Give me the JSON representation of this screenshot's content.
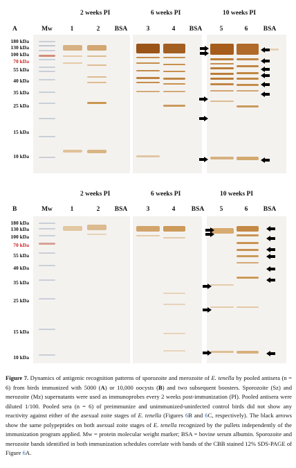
{
  "panels": [
    {
      "letter": "A",
      "pi_headers": [
        "2 weeks PI",
        "6 weeks PI",
        "10 weeks PI"
      ],
      "lane_labels": [
        "Mw",
        "1",
        "2",
        "BSA",
        "3",
        "4",
        "BSA",
        "5",
        "6",
        "BSA"
      ],
      "markers": [
        "180 kDa",
        "130 kDa",
        "100 kDa",
        "70 kDa",
        "55 kDa",
        "40 kDa",
        "35 kDa",
        "25 kDa",
        "15 kDa",
        "10 kDa"
      ],
      "marker_highlight": "70 kDa"
    },
    {
      "letter": "B",
      "pi_headers": [
        "2 weeks PI",
        "6 weeks PI",
        "10 weeks PI"
      ],
      "lane_labels": [
        "Mw",
        "1",
        "2",
        "BSA",
        "3",
        "4",
        "BSA",
        "5",
        "6",
        "BSA"
      ],
      "markers": [
        "180 kDa",
        "130 kDa",
        "100 kDa",
        "70 kDa",
        "55 kDa",
        "40 kDa",
        "35 kDa",
        "25 kDa",
        "15 kDa",
        "10 kDa"
      ],
      "marker_highlight": "70 kDa"
    }
  ],
  "caption": {
    "lead": "Figure 7.",
    "t1": " Dynamics of antigenic recognition patterns of sporozoite and merozoite of ",
    "i1": "E. tenella",
    "t2": " by pooled antisera (n = 6) from birds immunized with 5000 (",
    "bA": "A",
    "t3": ") or 10,000 oocysts (",
    "bB": "B",
    "t4": ") and two subsequent boosters. Sporozoite (Sz) and merozoite (Mz) supernatants were used as immunoprobes every 2 weeks post-immunization (PI). Pooled antisera were diluted 1/100. Pooled sera (n = 6) of preimmunize and unimmunized-uninfected control birds did not show any reactivity against either of the asexual zoite stages of ",
    "i2": "E. tenella",
    "t5": " (Figures ",
    "r1": "6",
    "t6": "B and ",
    "r2": "6",
    "t7": "C, respectively). The black arrows show the same polypeptides on both asexual zoite stages of ",
    "i3": "E. tenella",
    "t8": " recognized by the pullets independently of the immunization program applied. Mw = protein molecular weight marker; BSA = bovine serum albumin. Sporozoite and merozoite bands identified in both immunization schedules correlate with bands of the CBB stained 12% SDS-PAGE of Figure ",
    "r3": "6",
    "t9": "A."
  },
  "colors": {
    "band": "#b5752c",
    "band_dark": "#8a4a14",
    "marker_red": "#cc1f1f",
    "link": "#1a64b5",
    "arrow": "#000000"
  }
}
